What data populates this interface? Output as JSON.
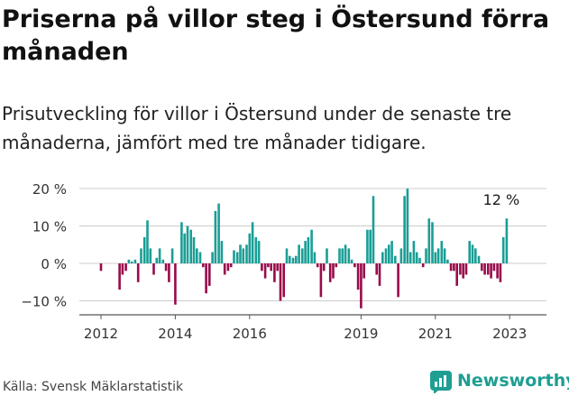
{
  "title": "Priserna på villor steg i Östersund förra månaden",
  "subtitle": "Prisutveckling för villor i Östersund under de senaste tre månaderna, jämfört med tre månader tidigare.",
  "source": "Källa: Svensk Mäklarstatistik",
  "brand": "Newsworthy",
  "colors": {
    "positive": "#1a9e96",
    "negative": "#990a4b",
    "brand": "#1f9e92",
    "grid": "#cccccc",
    "axis": "#555555"
  },
  "chart_data": {
    "type": "bar",
    "ylim": [
      -12,
      21
    ],
    "y_ticks": [
      -10,
      0,
      10,
      20
    ],
    "y_tick_labels": [
      "−10 %",
      "0 %",
      "10 %",
      "20 %"
    ],
    "x_tick_labels": [
      "2012",
      "2014",
      "2016",
      "2019",
      "2021",
      "2023"
    ],
    "x_tick_positions": [
      2012.0,
      2014.0,
      2016.0,
      2019.0,
      2021.0,
      2023.0
    ],
    "x_range": [
      2011.3,
      2023.6
    ],
    "annotation": "12 %",
    "bars": [
      {
        "x": 2012.0,
        "value": -2
      },
      {
        "x": 2012.5,
        "value": -7
      },
      {
        "x": 2012.58,
        "value": -3
      },
      {
        "x": 2012.67,
        "value": -2
      },
      {
        "x": 2012.75,
        "value": 1
      },
      {
        "x": 2012.83,
        "value": 0.5
      },
      {
        "x": 2012.92,
        "value": 1
      },
      {
        "x": 2013.0,
        "value": -5
      },
      {
        "x": 2013.08,
        "value": 4
      },
      {
        "x": 2013.17,
        "value": 7
      },
      {
        "x": 2013.25,
        "value": 11.5
      },
      {
        "x": 2013.33,
        "value": 4
      },
      {
        "x": 2013.42,
        "value": -3
      },
      {
        "x": 2013.5,
        "value": 1.5
      },
      {
        "x": 2013.58,
        "value": 4
      },
      {
        "x": 2013.67,
        "value": 1
      },
      {
        "x": 2013.75,
        "value": -2
      },
      {
        "x": 2013.83,
        "value": -5
      },
      {
        "x": 2013.92,
        "value": 4
      },
      {
        "x": 2014.0,
        "value": -11
      },
      {
        "x": 2014.17,
        "value": 11
      },
      {
        "x": 2014.25,
        "value": 8
      },
      {
        "x": 2014.33,
        "value": 10
      },
      {
        "x": 2014.42,
        "value": 9
      },
      {
        "x": 2014.5,
        "value": 7
      },
      {
        "x": 2014.58,
        "value": 4
      },
      {
        "x": 2014.67,
        "value": 3
      },
      {
        "x": 2014.75,
        "value": -1
      },
      {
        "x": 2014.83,
        "value": -8
      },
      {
        "x": 2014.92,
        "value": -6
      },
      {
        "x": 2015.0,
        "value": 3
      },
      {
        "x": 2015.08,
        "value": 14
      },
      {
        "x": 2015.17,
        "value": 16
      },
      {
        "x": 2015.25,
        "value": 6
      },
      {
        "x": 2015.33,
        "value": -3
      },
      {
        "x": 2015.42,
        "value": -2
      },
      {
        "x": 2015.5,
        "value": -1
      },
      {
        "x": 2015.58,
        "value": 3.5
      },
      {
        "x": 2015.67,
        "value": 3
      },
      {
        "x": 2015.75,
        "value": 5
      },
      {
        "x": 2015.83,
        "value": 4
      },
      {
        "x": 2015.92,
        "value": 5
      },
      {
        "x": 2016.0,
        "value": 8
      },
      {
        "x": 2016.08,
        "value": 11
      },
      {
        "x": 2016.17,
        "value": 7
      },
      {
        "x": 2016.25,
        "value": 6
      },
      {
        "x": 2016.33,
        "value": -2
      },
      {
        "x": 2016.42,
        "value": -4
      },
      {
        "x": 2016.5,
        "value": -1
      },
      {
        "x": 2016.58,
        "value": -2
      },
      {
        "x": 2016.67,
        "value": -5
      },
      {
        "x": 2016.75,
        "value": -2
      },
      {
        "x": 2016.83,
        "value": -10
      },
      {
        "x": 2016.92,
        "value": -9
      },
      {
        "x": 2017.0,
        "value": 4
      },
      {
        "x": 2017.08,
        "value": 2
      },
      {
        "x": 2017.17,
        "value": 1.5
      },
      {
        "x": 2017.25,
        "value": 2
      },
      {
        "x": 2017.33,
        "value": 5
      },
      {
        "x": 2017.42,
        "value": 4
      },
      {
        "x": 2017.5,
        "value": 6
      },
      {
        "x": 2017.58,
        "value": 7
      },
      {
        "x": 2017.67,
        "value": 9
      },
      {
        "x": 2017.75,
        "value": 3
      },
      {
        "x": 2017.83,
        "value": -1
      },
      {
        "x": 2017.92,
        "value": -9
      },
      {
        "x": 2018.0,
        "value": -2
      },
      {
        "x": 2018.08,
        "value": 4
      },
      {
        "x": 2018.17,
        "value": -5
      },
      {
        "x": 2018.25,
        "value": -4
      },
      {
        "x": 2018.33,
        "value": -1
      },
      {
        "x": 2018.42,
        "value": 4
      },
      {
        "x": 2018.5,
        "value": 4
      },
      {
        "x": 2018.58,
        "value": 5
      },
      {
        "x": 2018.67,
        "value": 4
      },
      {
        "x": 2018.75,
        "value": 1
      },
      {
        "x": 2018.83,
        "value": -1
      },
      {
        "x": 2018.92,
        "value": -7
      },
      {
        "x": 2019.0,
        "value": -12
      },
      {
        "x": 2019.08,
        "value": -4
      },
      {
        "x": 2019.17,
        "value": 9
      },
      {
        "x": 2019.25,
        "value": 9
      },
      {
        "x": 2019.33,
        "value": 18
      },
      {
        "x": 2019.42,
        "value": -3
      },
      {
        "x": 2019.5,
        "value": -6
      },
      {
        "x": 2019.58,
        "value": 3
      },
      {
        "x": 2019.67,
        "value": 4
      },
      {
        "x": 2019.75,
        "value": 5
      },
      {
        "x": 2019.83,
        "value": 6
      },
      {
        "x": 2019.92,
        "value": 2
      },
      {
        "x": 2020.0,
        "value": -9
      },
      {
        "x": 2020.08,
        "value": 4
      },
      {
        "x": 2020.17,
        "value": 18
      },
      {
        "x": 2020.25,
        "value": 20
      },
      {
        "x": 2020.33,
        "value": 3
      },
      {
        "x": 2020.42,
        "value": 6
      },
      {
        "x": 2020.5,
        "value": 3
      },
      {
        "x": 2020.58,
        "value": 1.5
      },
      {
        "x": 2020.67,
        "value": -1
      },
      {
        "x": 2020.75,
        "value": 4
      },
      {
        "x": 2020.83,
        "value": 12
      },
      {
        "x": 2020.92,
        "value": 11
      },
      {
        "x": 2021.0,
        "value": 3
      },
      {
        "x": 2021.08,
        "value": 4
      },
      {
        "x": 2021.17,
        "value": 6
      },
      {
        "x": 2021.25,
        "value": 4
      },
      {
        "x": 2021.33,
        "value": 1
      },
      {
        "x": 2021.42,
        "value": -2
      },
      {
        "x": 2021.5,
        "value": -2
      },
      {
        "x": 2021.58,
        "value": -6
      },
      {
        "x": 2021.67,
        "value": -3
      },
      {
        "x": 2021.75,
        "value": -4
      },
      {
        "x": 2021.83,
        "value": -3
      },
      {
        "x": 2021.92,
        "value": 6
      },
      {
        "x": 2022.0,
        "value": 5
      },
      {
        "x": 2022.08,
        "value": 4
      },
      {
        "x": 2022.17,
        "value": 2
      },
      {
        "x": 2022.25,
        "value": -2
      },
      {
        "x": 2022.33,
        "value": -3
      },
      {
        "x": 2022.42,
        "value": -3
      },
      {
        "x": 2022.5,
        "value": -4
      },
      {
        "x": 2022.58,
        "value": -2
      },
      {
        "x": 2022.67,
        "value": -4
      },
      {
        "x": 2022.75,
        "value": -5
      },
      {
        "x": 2022.83,
        "value": 7
      },
      {
        "x": 2022.92,
        "value": 12
      }
    ]
  }
}
